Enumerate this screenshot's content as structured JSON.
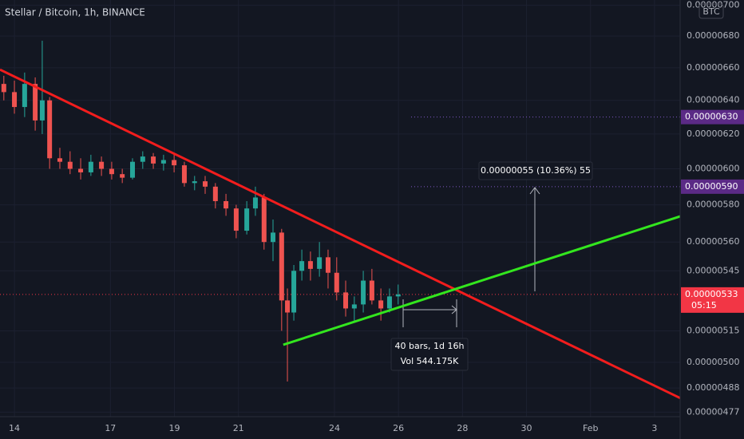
{
  "chart_data": {
    "type": "candlestick",
    "title": "Stellar / Bitcoin, 1h, BINANCE",
    "currency_badge": "BTC",
    "log_scale": true,
    "grid": true,
    "up_color": "#26a69a",
    "down_color": "#ef5350",
    "xlim": [
      13.55,
      34.8
    ],
    "ylim": [
      4.75e-06,
      7.035e-06
    ],
    "xticks": [
      14,
      17,
      19,
      21,
      24,
      26,
      28,
      30,
      {
        "value": 32,
        "label": "Feb"
      },
      {
        "value": 34,
        "label": "3"
      }
    ],
    "yticks": [
      {
        "value": 7e-06,
        "label": "0.00000700"
      },
      {
        "value": 6.8e-06,
        "label": "0.00000680"
      },
      {
        "value": 6.6e-06,
        "label": "0.00000660"
      },
      {
        "value": 6.4e-06,
        "label": "0.00000640"
      },
      {
        "value": 6.2e-06,
        "label": "0.00000620"
      },
      {
        "value": 6e-06,
        "label": "0.00000600"
      },
      {
        "value": 5.8e-06,
        "label": "0.00000580"
      },
      {
        "value": 5.6e-06,
        "label": "0.00000560"
      },
      {
        "value": 5.45e-06,
        "label": "0.00000545"
      },
      {
        "value": 5.15e-06,
        "label": "0.00000515"
      },
      {
        "value": 5e-06,
        "label": "0.00000500"
      },
      {
        "value": 4.88e-06,
        "label": "0.00000488"
      },
      {
        "value": 4.77e-06,
        "label": "0.00000477"
      }
    ],
    "x": [
      13.67,
      14.0,
      14.32,
      14.65,
      14.87,
      15.1,
      15.42,
      15.74,
      16.07,
      16.39,
      16.72,
      17.04,
      17.37,
      17.69,
      18.01,
      18.34,
      18.66,
      18.99,
      19.31,
      19.63,
      19.96,
      20.28,
      20.61,
      20.93,
      21.26,
      21.53,
      21.8,
      22.08,
      22.35,
      22.53,
      22.73,
      22.98,
      23.25,
      23.53,
      23.8,
      24.07,
      24.35,
      24.62,
      24.9,
      25.17,
      25.45,
      25.72,
      25.99
    ],
    "open": [
      6.5e-06,
      6.45e-06,
      6.36e-06,
      6.5e-06,
      6.28e-06,
      6.4e-06,
      6.06e-06,
      6.04e-06,
      6e-06,
      5.98e-06,
      6.04e-06,
      6e-06,
      5.97e-06,
      5.95e-06,
      6.04e-06,
      6.07e-06,
      6.03e-06,
      6.05e-06,
      6.02e-06,
      5.92e-06,
      5.93e-06,
      5.9e-06,
      5.82e-06,
      5.78e-06,
      5.66e-06,
      5.78e-06,
      5.84e-06,
      5.6e-06,
      5.65e-06,
      5.3e-06,
      5.24e-06,
      5.45e-06,
      5.5e-06,
      5.46e-06,
      5.52e-06,
      5.44e-06,
      5.34e-06,
      5.26e-06,
      5.28e-06,
      5.4e-06,
      5.3e-06,
      5.26e-06,
      5.32e-06
    ],
    "high": [
      6.55e-06,
      6.52e-06,
      6.57e-06,
      6.54e-06,
      6.77e-06,
      6.42e-06,
      6.12e-06,
      6.1e-06,
      6.06e-06,
      6.08e-06,
      6.07e-06,
      6.04e-06,
      6e-06,
      6.06e-06,
      6.1e-06,
      6.09e-06,
      6.08e-06,
      6.09e-06,
      6.04e-06,
      5.96e-06,
      5.96e-06,
      5.92e-06,
      5.86e-06,
      5.8e-06,
      5.82e-06,
      5.9e-06,
      5.86e-06,
      5.72e-06,
      5.67e-06,
      5.36e-06,
      5.48e-06,
      5.56e-06,
      5.55e-06,
      5.6e-06,
      5.56e-06,
      5.52e-06,
      5.4e-06,
      5.32e-06,
      5.45e-06,
      5.46e-06,
      5.36e-06,
      5.36e-06,
      5.38e-06
    ],
    "low": [
      6.4e-06,
      6.32e-06,
      6.3e-06,
      6.22e-06,
      6.2e-06,
      6e-06,
      6e-06,
      5.97e-06,
      5.94e-06,
      5.96e-06,
      5.96e-06,
      5.94e-06,
      5.92e-06,
      5.94e-06,
      6e-06,
      6e-06,
      5.99e-06,
      5.98e-06,
      5.9e-06,
      5.88e-06,
      5.86e-06,
      5.78e-06,
      5.74e-06,
      5.62e-06,
      5.64e-06,
      5.74e-06,
      5.56e-06,
      5.5e-06,
      5.15e-06,
      4.91e-06,
      5.2e-06,
      5.4e-06,
      5.4e-06,
      5.42e-06,
      5.36e-06,
      5.3e-06,
      5.22e-06,
      5.2e-06,
      5.24e-06,
      5.28e-06,
      5.2e-06,
      5.24e-06,
      5.28e-06
    ],
    "close": [
      6.45e-06,
      6.36e-06,
      6.5e-06,
      6.28e-06,
      6.4e-06,
      6.06e-06,
      6.04e-06,
      6e-06,
      5.98e-06,
      6.04e-06,
      6e-06,
      5.97e-06,
      5.95e-06,
      6.04e-06,
      6.07e-06,
      6.03e-06,
      6.05e-06,
      6.02e-06,
      5.92e-06,
      5.93e-06,
      5.9e-06,
      5.82e-06,
      5.78e-06,
      5.66e-06,
      5.78e-06,
      5.84e-06,
      5.6e-06,
      5.65e-06,
      5.3e-06,
      5.24e-06,
      5.45e-06,
      5.5e-06,
      5.46e-06,
      5.52e-06,
      5.44e-06,
      5.34e-06,
      5.26e-06,
      5.28e-06,
      5.4e-06,
      5.3e-06,
      5.26e-06,
      5.32e-06,
      5.33e-06
    ],
    "trendlines": [
      {
        "color": "#f21d1d",
        "x": [
          13.55,
          34.8
        ],
        "y": [
          6.588e-06,
          4.834e-06
        ]
      },
      {
        "color": "#33e61e",
        "x": [
          22.4,
          34.8
        ],
        "y": [
          5.083e-06,
          5.737e-06
        ]
      }
    ],
    "price_labels": [
      {
        "value": 6.3e-06,
        "label": "0.00000630",
        "color": "#5b2a86"
      },
      {
        "value": 5.9e-06,
        "label": "0.00000590",
        "color": "#5b2a86"
      },
      {
        "value": 5.33e-06,
        "label": "0.00000533",
        "time": "05:15",
        "color": "#f23645"
      }
    ],
    "measure_price": "0.00000055 (10.36%) 55",
    "measure_bars": [
      "40 bars, 1d 16h",
      "Vol 544.175K"
    ]
  }
}
